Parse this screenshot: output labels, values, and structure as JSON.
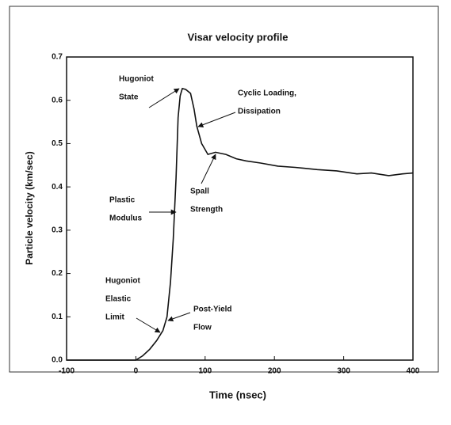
{
  "chart_data": {
    "type": "line",
    "title": "Visar velocity profile",
    "xlabel": "Time (nsec)",
    "ylabel": "Particle velocity (km/sec)",
    "x": [
      -100,
      -50,
      0,
      10,
      20,
      30,
      39,
      45,
      50,
      54,
      58,
      61,
      64,
      67,
      72,
      79,
      84,
      88,
      95,
      104,
      115,
      130,
      145,
      159,
      180,
      205,
      230,
      262,
      290,
      319,
      340,
      365,
      385,
      400
    ],
    "series": [
      {
        "name": null,
        "color": "#111111",
        "values": [
          0,
          0,
          0,
          0.01,
          0.025,
          0.045,
          0.068,
          0.1,
          0.18,
          0.28,
          0.42,
          0.56,
          0.61,
          0.627,
          0.625,
          0.616,
          0.58,
          0.54,
          0.5,
          0.475,
          0.48,
          0.475,
          0.465,
          0.46,
          0.455,
          0.448,
          0.445,
          0.44,
          0.437,
          0.43,
          0.432,
          0.426,
          0.43,
          0.432
        ]
      }
    ],
    "xlim": [
      -100,
      400
    ],
    "xticks": [
      -100,
      0,
      100,
      200,
      300,
      400
    ],
    "ylim": [
      0,
      0.7
    ],
    "yticks": [
      {
        "value": 0,
        "label": "0.0"
      },
      0.1,
      0.2,
      0.3,
      0.4,
      0.5,
      0.6,
      0.7
    ],
    "annotations": [
      [
        "Hugoniot",
        "State"
      ],
      [
        "Cyclic Loading,",
        "Dissipation"
      ],
      [
        "Plastic",
        "Modulus"
      ],
      [
        "Spall",
        "Strength"
      ],
      [
        "Hugoniot",
        "Elastic",
        "Limit"
      ],
      [
        "Post-Yield",
        "Flow"
      ]
    ]
  }
}
